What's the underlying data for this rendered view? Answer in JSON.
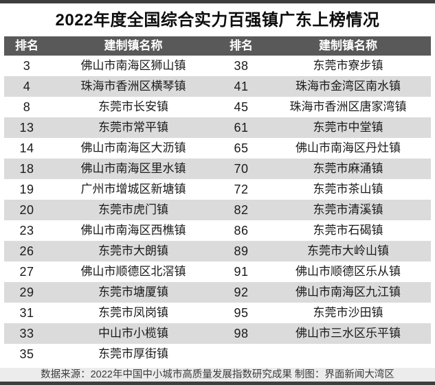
{
  "title": "2022年度全国综合实力百强镇广东上榜情况",
  "chart_data": {
    "type": "table",
    "title": "2022年度全国综合实力百强镇广东上榜情况",
    "columns": [
      "排名",
      "建制镇名称",
      "排名",
      "建制镇名称"
    ],
    "rows": [
      [
        "3",
        "佛山市南海区狮山镇",
        "38",
        "东莞市寮步镇"
      ],
      [
        "4",
        "珠海市香洲区横琴镇",
        "41",
        "珠海市金湾区南水镇"
      ],
      [
        "8",
        "东莞市长安镇",
        "45",
        "珠海市香洲区唐家湾镇"
      ],
      [
        "13",
        "东莞市常平镇",
        "61",
        "东莞市中堂镇"
      ],
      [
        "14",
        "佛山市南海区大沥镇",
        "65",
        "佛山市南海区丹灶镇"
      ],
      [
        "18",
        "佛山市南海区里水镇",
        "70",
        "东莞市麻涌镇"
      ],
      [
        "19",
        "广州市增城区新塘镇",
        "72",
        "东莞市茶山镇"
      ],
      [
        "20",
        "东莞市虎门镇",
        "82",
        "东莞市清溪镇"
      ],
      [
        "23",
        "佛山市南海区西樵镇",
        "86",
        "东莞市石碣镇"
      ],
      [
        "26",
        "东莞市大朗镇",
        "89",
        "东莞市大岭山镇"
      ],
      [
        "27",
        "佛山市顺德区北滘镇",
        "91",
        "佛山市顺德区乐从镇"
      ],
      [
        "29",
        "东莞市塘厦镇",
        "92",
        "佛山市南海区九江镇"
      ],
      [
        "31",
        "东莞市凤岗镇",
        "95",
        "东莞市沙田镇"
      ],
      [
        "33",
        "中山市小榄镇",
        "98",
        "佛山市三水区乐平镇"
      ],
      [
        "35",
        "东莞市厚街镇",
        "",
        ""
      ]
    ],
    "footer": "数据来源：2022年中国中小城市高质量发展指数研究成果 制图：界面新闻大湾区",
    "layout": {
      "stripe": "alternate-rows",
      "first_row": "white",
      "grid": "off"
    }
  },
  "footer": {
    "text": "数据来源：2022年中国中小城市高质量发展指数研究成果 制图：界面新闻大湾区"
  },
  "colors": {
    "header_bg": "#595959",
    "header_text": "#ffffff",
    "stripe_bg": "#dbdbdb",
    "row_bg": "#ffffff",
    "footer_bg": "#ececec",
    "edge_strip": "#3e3e3e",
    "title_text": "#0d0d0d"
  }
}
